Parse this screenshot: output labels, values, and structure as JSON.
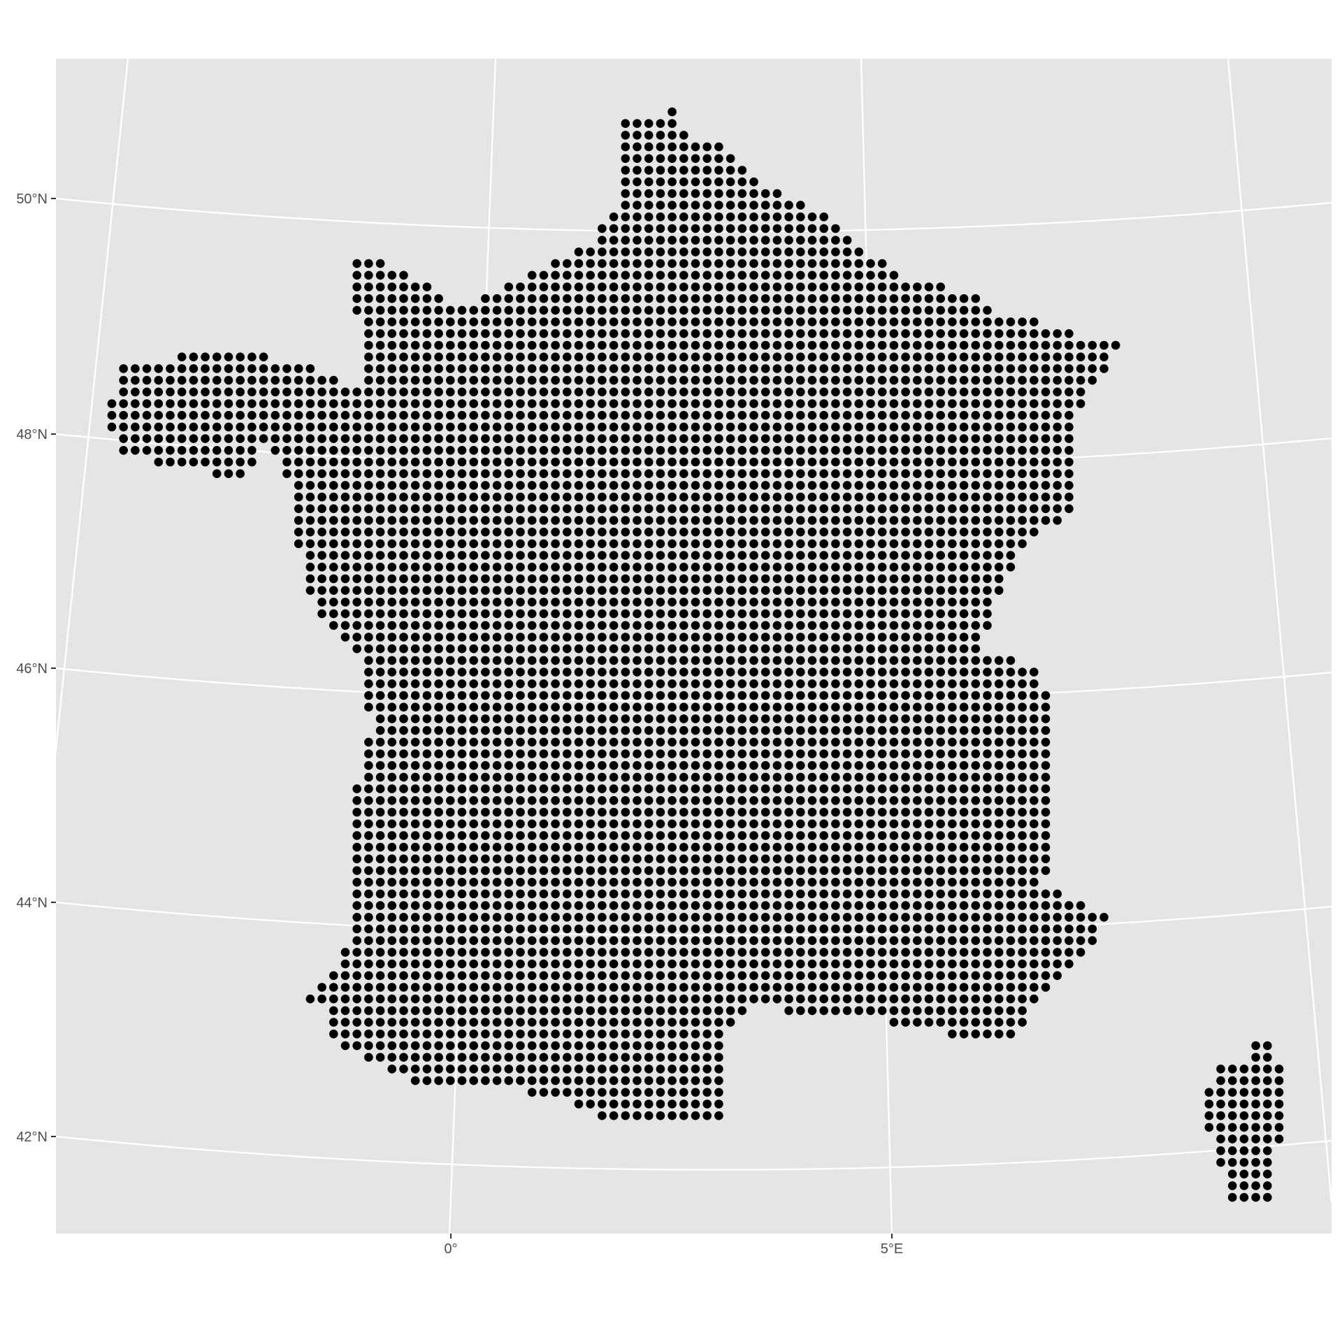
{
  "map": {
    "graticule": {
      "latitude_labels": [
        "50°N",
        "48°N",
        "46°N",
        "44°N",
        "42°N"
      ],
      "longitude_labels": [
        "0°",
        "5°E"
      ]
    },
    "colors": {
      "panel_background": "#e5e5e5",
      "grid_lines": "#ffffff",
      "points": "#000000",
      "tick_labels": "#4d4d4d",
      "tick_marks": "#333333"
    },
    "points_description": "regular grid of black dots covering mainland France and Corsica"
  }
}
